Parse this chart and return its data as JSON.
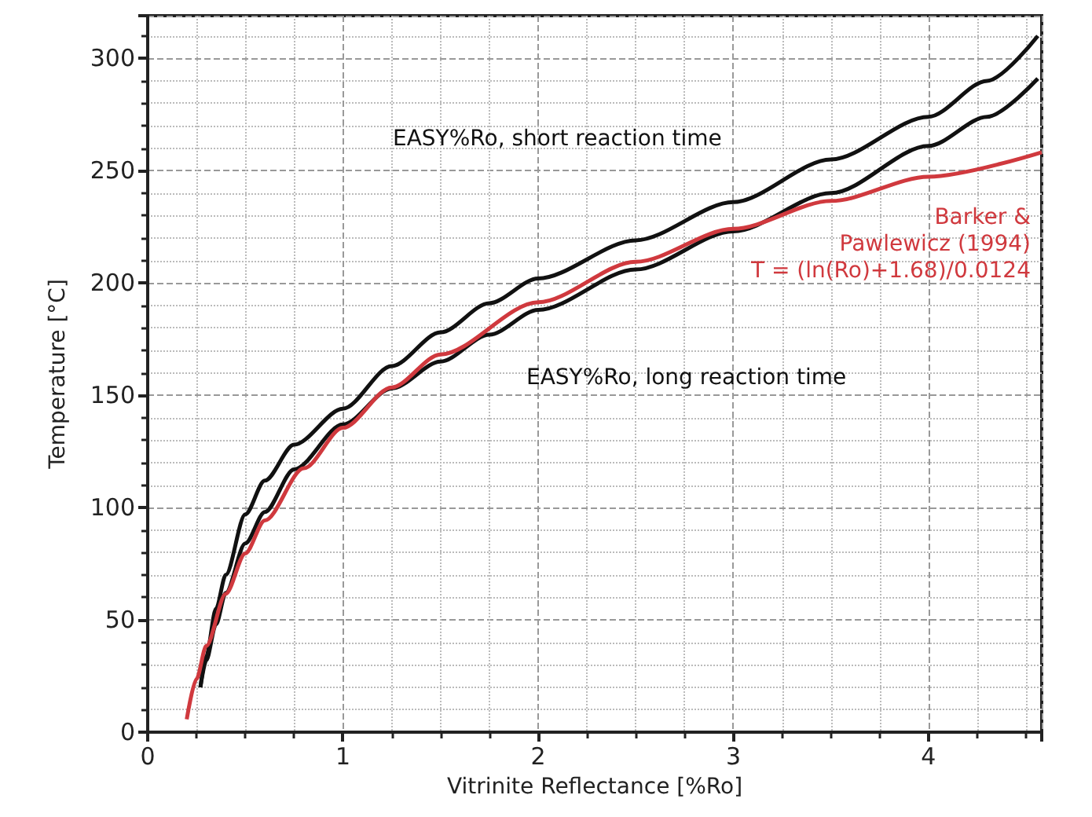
{
  "chart_data": {
    "type": "line",
    "xlabel": "Vitrinite Reflectance [%Ro]",
    "ylabel": "Temperature [°C]",
    "xlim": [
      0,
      4.58
    ],
    "ylim": [
      0,
      319
    ],
    "xticks": [
      0,
      1,
      2,
      3,
      4
    ],
    "yticks": [
      0,
      50,
      100,
      150,
      200,
      250,
      300
    ],
    "grid": true,
    "series": [
      {
        "name": "EASY%Ro, short reaction time",
        "color": "#111111",
        "x": [
          0.27,
          0.3,
          0.35,
          0.4,
          0.5,
          0.6,
          0.75,
          1,
          1.25,
          1.5,
          1.75,
          2,
          2.5,
          3,
          3.5,
          4,
          4.3,
          4.56
        ],
        "values": [
          20,
          34,
          55,
          70,
          97,
          112,
          128,
          144,
          163,
          178,
          191,
          202,
          219,
          236,
          255,
          274,
          290,
          310
        ]
      },
      {
        "name": "EASY%Ro, long reaction time",
        "color": "#111111",
        "x": [
          0.27,
          0.3,
          0.35,
          0.4,
          0.5,
          0.6,
          0.75,
          1,
          1.25,
          1.5,
          1.75,
          2,
          2.5,
          3,
          3.5,
          4,
          4.3,
          4.56
        ],
        "values": [
          20,
          32,
          48,
          62,
          84,
          98,
          117,
          137,
          153,
          165,
          177,
          188,
          206,
          223,
          240,
          261,
          274,
          291
        ]
      },
      {
        "name": "Barker &\nPawlewicz (1994)\nT = (ln(Ro)+1.68)/0.0124",
        "color": "#d0393e",
        "x": [
          0.2,
          0.25,
          0.3,
          0.4,
          0.5,
          0.6,
          0.8,
          1,
          1.25,
          1.5,
          2,
          2.5,
          3,
          3.5,
          4,
          4.58
        ],
        "values": [
          5.7,
          23.7,
          38.4,
          61.6,
          79.6,
          94.3,
          117.5,
          135.5,
          153.5,
          168.2,
          191.4,
          209.4,
          224.1,
          236.5,
          247.3,
          258.2
        ]
      }
    ]
  }
}
